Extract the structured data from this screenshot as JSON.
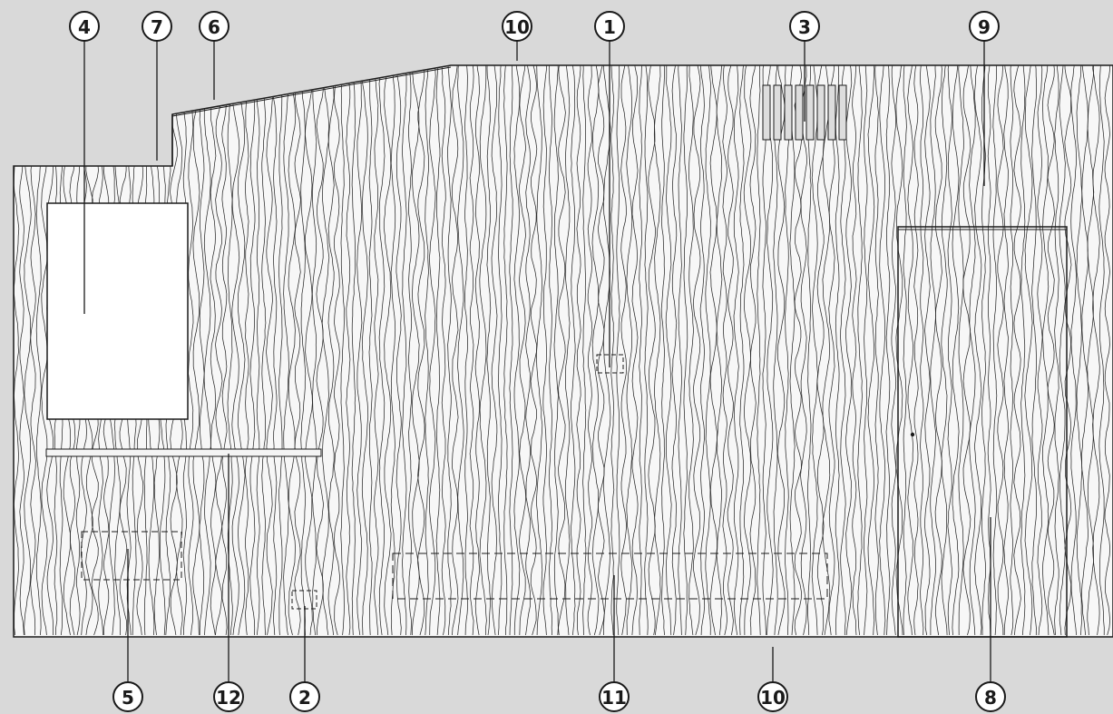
{
  "callouts": [
    {
      "id": "c1",
      "label": "1"
    },
    {
      "id": "c2",
      "label": "2"
    },
    {
      "id": "c3",
      "label": "3"
    },
    {
      "id": "c4",
      "label": "4"
    },
    {
      "id": "c5",
      "label": "5"
    },
    {
      "id": "c6",
      "label": "6"
    },
    {
      "id": "c7",
      "label": "7"
    },
    {
      "id": "c8",
      "label": "8"
    },
    {
      "id": "c9",
      "label": "9"
    },
    {
      "id": "c10a",
      "label": "10"
    },
    {
      "id": "c10b",
      "label": "10"
    },
    {
      "id": "c11",
      "label": "11"
    },
    {
      "id": "c12",
      "label": "12"
    }
  ],
  "colors": {
    "background": "#d9d9d9",
    "facade": "#f7f7f7",
    "line": "#1a1a1a",
    "window": "#ffffff"
  }
}
